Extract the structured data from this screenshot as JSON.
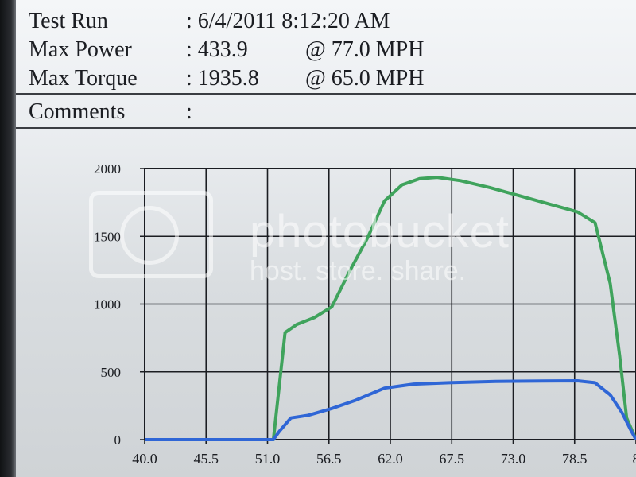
{
  "header": {
    "test_run": {
      "label": "Test Run",
      "value": ": 6/4/2011 8:12:20 AM"
    },
    "max_power": {
      "label": "Max Power",
      "value": ": 433.9",
      "at": "@ 77.0  MPH"
    },
    "max_torque": {
      "label": "Max Torque",
      "value": ": 1935.8",
      "at": "@ 65.0  MPH"
    },
    "comments": {
      "label": "Comments",
      "value": ":"
    }
  },
  "watermark": {
    "brand": "photobucket",
    "tagline": "host. store. share."
  },
  "colors": {
    "torque": "#3fa35c",
    "power": "#2f66d6",
    "grid": "#1b1d22"
  },
  "chart_data": {
    "type": "line",
    "x_ticks": [
      "40.0",
      "45.5",
      "51.0",
      "56.5",
      "62.0",
      "67.5",
      "73.0",
      "78.5",
      "8"
    ],
    "xlim": [
      40.0,
      82.0
    ],
    "y_ticks": [
      "0",
      "500",
      "1000",
      "1500",
      "2000"
    ],
    "ylim": [
      0,
      2000
    ],
    "xlabel": "",
    "series": [
      {
        "color_key": "torque",
        "x": [
          40.0,
          51.0,
          52.0,
          53.0,
          54.5,
          56.0,
          57.5,
          59.0,
          60.5,
          62.0,
          63.5,
          65.0,
          67.0,
          69.5,
          72.0,
          74.5,
          77.0,
          78.5,
          79.8,
          80.6,
          81.2,
          82.0
        ],
        "y": [
          0,
          0,
          790,
          850,
          900,
          980,
          1240,
          1480,
          1760,
          1880,
          1925,
          1935,
          1910,
          1860,
          1800,
          1740,
          1680,
          1600,
          1150,
          620,
          160,
          0
        ]
      },
      {
        "color_key": "power",
        "x": [
          40.0,
          51.0,
          51.5,
          52.5,
          54.0,
          56.0,
          58.0,
          60.5,
          63.0,
          66.0,
          70.0,
          74.0,
          77.0,
          78.5,
          79.8,
          80.8,
          81.5,
          82.0
        ],
        "y": [
          0,
          0,
          60,
          160,
          180,
          230,
          290,
          380,
          410,
          420,
          430,
          433,
          434,
          420,
          330,
          200,
          80,
          0
        ]
      }
    ]
  }
}
